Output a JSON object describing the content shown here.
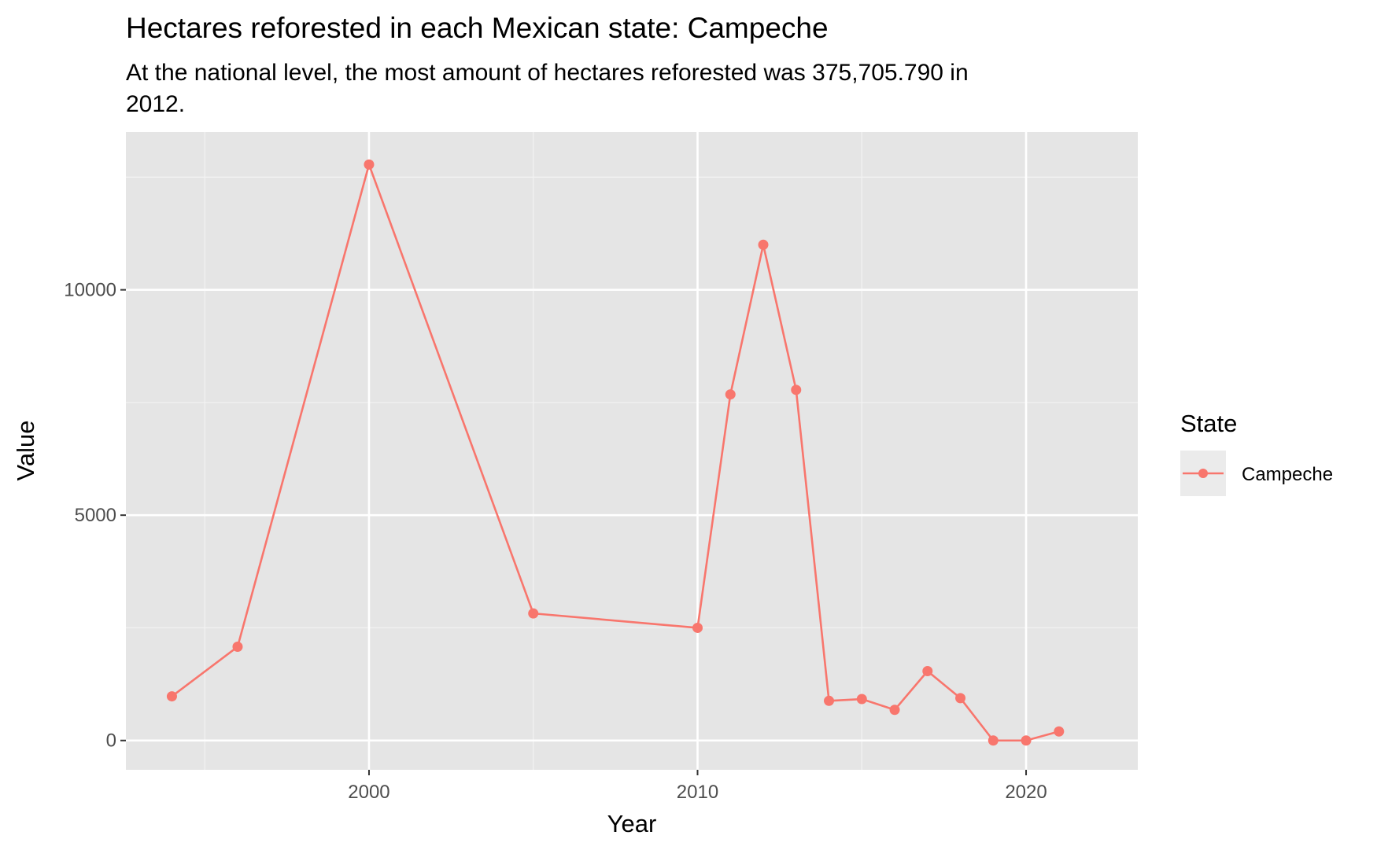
{
  "chart_data": {
    "type": "line",
    "title": "Hectares reforested in each Mexican state: Campeche",
    "subtitle_lines": [
      "At the national level, the most amount of hectares reforested was 375,705.790 in",
      "2012."
    ],
    "xlabel": "Year",
    "ylabel": "Value",
    "xlim": [
      1992.6,
      2023.4
    ],
    "ylim": [
      -650,
      13500
    ],
    "x_ticks": [
      2000,
      2010,
      2020
    ],
    "x_tick_labels": [
      "2000",
      "2010",
      "2020"
    ],
    "y_ticks": [
      0,
      5000,
      10000
    ],
    "y_tick_labels": [
      "0",
      "5000",
      "10000"
    ],
    "grid": true,
    "legend_title": "State",
    "legend_position": "right",
    "series": [
      {
        "name": "Campeche",
        "color": "#F8766D",
        "x": [
          1994,
          1996,
          2000,
          2005,
          2010,
          2011,
          2012,
          2013,
          2014,
          2015,
          2016,
          2017,
          2018,
          2019,
          2020,
          2021
        ],
        "values": [
          980,
          2080,
          12780,
          2820,
          2500,
          7680,
          11000,
          7780,
          880,
          920,
          680,
          1540,
          940,
          0,
          0,
          200
        ]
      }
    ]
  }
}
